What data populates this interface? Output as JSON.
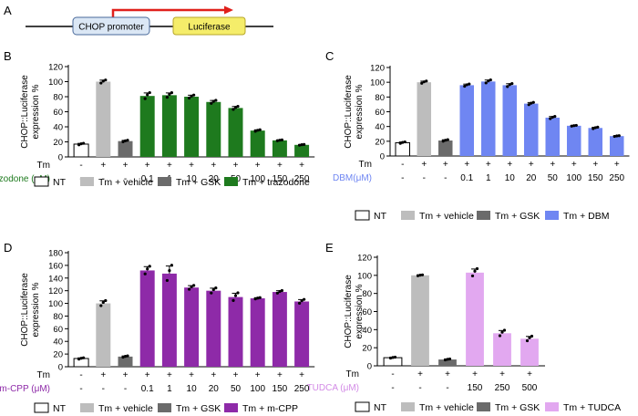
{
  "panelA": {
    "letter": "A",
    "promoter_label": "CHOP promoter",
    "reporter_label": "Luciferase"
  },
  "colors": {
    "nt": "#ffffff",
    "vehicle": "#bdbdbd",
    "gsk": "#6b6b6b",
    "trazodone": "#1e7a1e",
    "dbm": "#6f86f2",
    "mcpp": "#8e2aa8",
    "tudca": "#e2a8f0",
    "promoter_fill": "#dbe7f5",
    "luciferase_fill": "#f5ed6a",
    "arrow": "#e0201b"
  },
  "legend_common": {
    "nt": "NT",
    "vehicle": "Tm + vehicle",
    "gsk": "Tm + GSK"
  },
  "chart_data": [
    {
      "id": "B",
      "type": "bar",
      "letter": "B",
      "ylabel_line1": "CHOP::Luciferase",
      "ylabel_line2": "expression %",
      "ylim": [
        0,
        120
      ],
      "yticks": [
        "0",
        "20",
        "40",
        "60",
        "80",
        "100",
        "120"
      ],
      "tm_label": "Tm",
      "tm_row": [
        "-",
        "+",
        "+",
        "+",
        "+",
        "+",
        "+",
        "+",
        "+",
        "+",
        "+"
      ],
      "dose_label": "trazodone (μM)",
      "dose_row": [
        "-",
        "-",
        "-",
        "0.1",
        "1",
        "10",
        "20",
        "50",
        "100",
        "150",
        "250"
      ],
      "categories": [
        "NT",
        "Tm + vehicle",
        "Tm + GSK",
        "0.1",
        "1",
        "10",
        "20",
        "50",
        "100",
        "150",
        "250"
      ],
      "values": [
        17,
        100,
        21,
        81,
        82,
        80,
        73,
        65,
        35,
        22,
        16
      ],
      "errors": [
        1,
        2,
        1,
        4,
        3,
        2,
        2,
        2,
        1,
        0.5,
        0.5
      ],
      "groups": [
        "nt",
        "vehicle",
        "gsk",
        "drug",
        "drug",
        "drug",
        "drug",
        "drug",
        "drug",
        "drug",
        "drug"
      ],
      "drug_color_key": "trazodone",
      "legend_drug": "Tm + trazodone"
    },
    {
      "id": "C",
      "type": "bar",
      "letter": "C",
      "ylabel_line1": "CHOP::Luciferase",
      "ylabel_line2": "expression %",
      "ylim": [
        0,
        120
      ],
      "yticks": [
        "0",
        "20",
        "40",
        "60",
        "80",
        "100",
        "120"
      ],
      "tm_label": "Tm",
      "tm_row": [
        "-",
        "+",
        "+",
        "+",
        "+",
        "+",
        "+",
        "+",
        "+",
        "+",
        "+"
      ],
      "dose_label": "DBM(μM)",
      "dose_row": [
        "-",
        "-",
        "-",
        "0.1",
        "1",
        "10",
        "20",
        "50",
        "100",
        "150",
        "250"
      ],
      "categories": [
        "NT",
        "Tm + vehicle",
        "Tm + GSK",
        "0.1",
        "1",
        "10",
        "20",
        "50",
        "100",
        "150",
        "250"
      ],
      "values": [
        18,
        100,
        21,
        96,
        101,
        96,
        71,
        52,
        41,
        38,
        27
      ],
      "errors": [
        1,
        1.5,
        1,
        1.5,
        2,
        2,
        1.5,
        1.5,
        0.5,
        1,
        0.5
      ],
      "groups": [
        "nt",
        "vehicle",
        "gsk",
        "drug",
        "drug",
        "drug",
        "drug",
        "drug",
        "drug",
        "drug",
        "drug"
      ],
      "drug_color_key": "dbm",
      "legend_drug": "Tm + DBM"
    },
    {
      "id": "D",
      "type": "bar",
      "letter": "D",
      "ylabel_line1": "CHOP::Luciferase",
      "ylabel_line2": "expression %",
      "ylim": [
        0,
        180
      ],
      "yticks": [
        "0",
        "20",
        "40",
        "60",
        "80",
        "100",
        "120",
        "140",
        "160",
        "180"
      ],
      "tm_label": "Tm",
      "tm_row": [
        "-",
        "+",
        "+",
        "+",
        "+",
        "+",
        "+",
        "+",
        "+",
        "+",
        "+"
      ],
      "dose_label": "m-CPP (μM)",
      "dose_row": [
        "-",
        "-",
        "-",
        "0.1",
        "1",
        "10",
        "20",
        "50",
        "100",
        "150",
        "250"
      ],
      "categories": [
        "NT",
        "Tm + vehicle",
        "Tm + GSK",
        "0.1",
        "1",
        "10",
        "20",
        "50",
        "100",
        "150",
        "250"
      ],
      "values": [
        13,
        100,
        16,
        152,
        147,
        125,
        120,
        110,
        108,
        118,
        103
      ],
      "errors": [
        1,
        4,
        1,
        6,
        12,
        3,
        4,
        6,
        1,
        2,
        3
      ],
      "groups": [
        "nt",
        "vehicle",
        "gsk",
        "drug",
        "drug",
        "drug",
        "drug",
        "drug",
        "drug",
        "drug",
        "drug"
      ],
      "drug_color_key": "mcpp",
      "legend_drug": "Tm + m-CPP"
    },
    {
      "id": "E",
      "type": "bar",
      "letter": "E",
      "ylabel_line1": "CHOP::Luciferase",
      "ylabel_line2": "expression %",
      "ylim": [
        0,
        120
      ],
      "yticks": [
        "0",
        "20",
        "40",
        "60",
        "80",
        "100",
        "120"
      ],
      "tm_label": "Tm",
      "tm_row": [
        "-",
        "+",
        "+",
        "+",
        "+",
        "+"
      ],
      "dose_label": "TUDCA (μM)",
      "dose_row": [
        "-",
        "-",
        "-",
        "150",
        "250",
        "500"
      ],
      "categories": [
        "NT",
        "Tm + vehicle",
        "Tm + GSK",
        "150",
        "250",
        "500"
      ],
      "values": [
        9,
        100,
        7,
        103,
        36,
        30
      ],
      "errors": [
        0.5,
        0.5,
        0.5,
        4,
        3,
        2.5
      ],
      "groups": [
        "nt",
        "vehicle",
        "gsk",
        "drug",
        "drug",
        "drug"
      ],
      "drug_color_key": "tudca",
      "legend_drug": "Tm + TUDCA"
    }
  ]
}
